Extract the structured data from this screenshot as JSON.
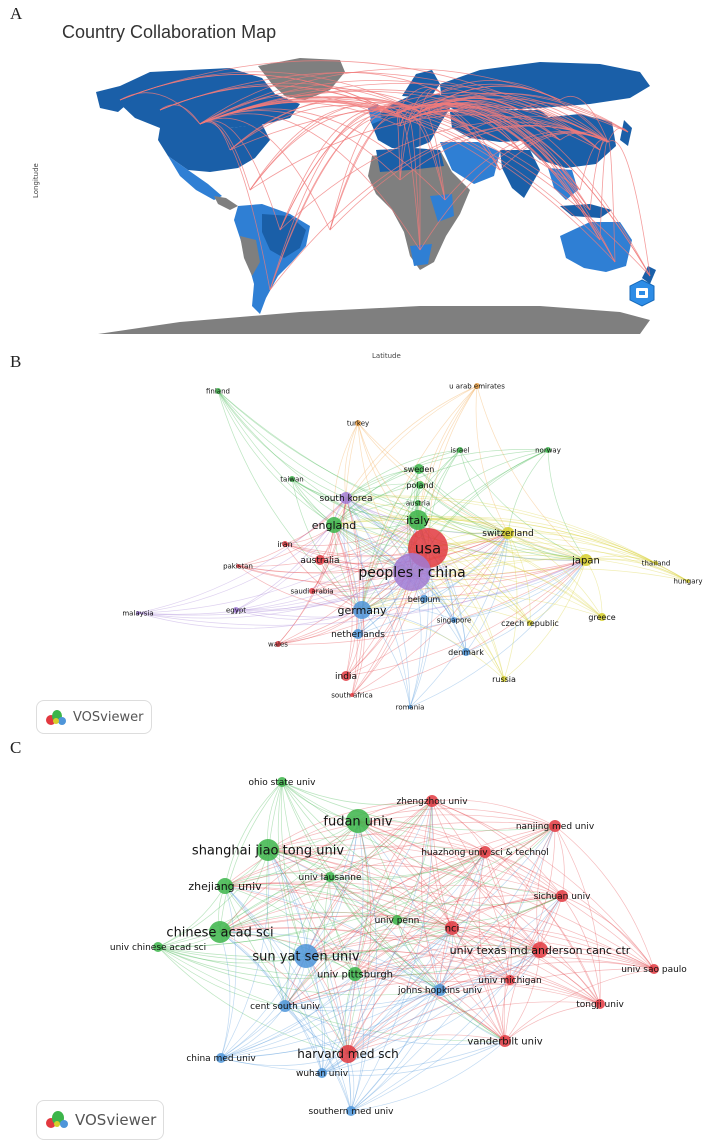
{
  "panels": {
    "a": "A",
    "b": "B",
    "c": "C"
  },
  "map": {
    "title": "Country Collaboration Map",
    "y_label": "Longitude",
    "x_label": "Latitude",
    "colors": {
      "dark": "#1a5fa8",
      "medium": "#2f7fd4",
      "light": "#58a6ee",
      "none": "#7f7f7f",
      "link": "#f07b7b"
    }
  },
  "vos_label": "VOSviewer",
  "country_network": {
    "cluster_colors": {
      "red": "#e2383f",
      "green": "#3cb54a",
      "blue": "#4e95d9",
      "yellow": "#d6cf2a",
      "purple": "#a07ad4",
      "orange": "#f0a040"
    },
    "nodes": [
      {
        "label": "usa",
        "cluster": "red",
        "size": 20,
        "fs": 15
      },
      {
        "label": "peoples r china",
        "cluster": "purple",
        "size": 19,
        "fs": 14
      },
      {
        "label": "italy",
        "cluster": "green",
        "size": 10,
        "fs": 11
      },
      {
        "label": "germany",
        "cluster": "blue",
        "size": 9,
        "fs": 11
      },
      {
        "label": "england",
        "cluster": "green",
        "size": 8,
        "fs": 11
      },
      {
        "label": "japan",
        "cluster": "yellow",
        "size": 6,
        "fs": 10
      },
      {
        "label": "switzerland",
        "cluster": "yellow",
        "size": 6,
        "fs": 9
      },
      {
        "label": "south korea",
        "cluster": "purple",
        "size": 6,
        "fs": 9
      },
      {
        "label": "sweden",
        "cluster": "green",
        "size": 5,
        "fs": 8
      },
      {
        "label": "poland",
        "cluster": "green",
        "size": 4,
        "fs": 8
      },
      {
        "label": "austria",
        "cluster": "green",
        "size": 3,
        "fs": 7
      },
      {
        "label": "israel",
        "cluster": "green",
        "size": 3,
        "fs": 7
      },
      {
        "label": "norway",
        "cluster": "green",
        "size": 3,
        "fs": 7
      },
      {
        "label": "finland",
        "cluster": "green",
        "size": 3,
        "fs": 7
      },
      {
        "label": "taiwan",
        "cluster": "green",
        "size": 3,
        "fs": 7
      },
      {
        "label": "turkey",
        "cluster": "orange",
        "size": 3,
        "fs": 7
      },
      {
        "label": "u arab emirates",
        "cluster": "orange",
        "size": 3,
        "fs": 7
      },
      {
        "label": "iran",
        "cluster": "red",
        "size": 3,
        "fs": 8
      },
      {
        "label": "australia",
        "cluster": "red",
        "size": 5,
        "fs": 9
      },
      {
        "label": "pakistan",
        "cluster": "red",
        "size": 2,
        "fs": 7
      },
      {
        "label": "saudi arabia",
        "cluster": "red",
        "size": 3,
        "fs": 7
      },
      {
        "label": "wales",
        "cluster": "red",
        "size": 3,
        "fs": 7
      },
      {
        "label": "india",
        "cluster": "red",
        "size": 5,
        "fs": 9
      },
      {
        "label": "south africa",
        "cluster": "red",
        "size": 2,
        "fs": 7
      },
      {
        "label": "malaysia",
        "cluster": "purple",
        "size": 2,
        "fs": 7
      },
      {
        "label": "egypt",
        "cluster": "purple",
        "size": 3,
        "fs": 7
      },
      {
        "label": "netherlands",
        "cluster": "blue",
        "size": 5,
        "fs": 9
      },
      {
        "label": "belgium",
        "cluster": "blue",
        "size": 4,
        "fs": 8
      },
      {
        "label": "singapore",
        "cluster": "blue",
        "size": 3,
        "fs": 7
      },
      {
        "label": "denmark",
        "cluster": "blue",
        "size": 4,
        "fs": 8
      },
      {
        "label": "romania",
        "cluster": "blue",
        "size": 2,
        "fs": 7
      },
      {
        "label": "czech republic",
        "cluster": "yellow",
        "size": 3,
        "fs": 8
      },
      {
        "label": "greece",
        "cluster": "yellow",
        "size": 4,
        "fs": 8
      },
      {
        "label": "russia",
        "cluster": "yellow",
        "size": 3,
        "fs": 8
      },
      {
        "label": "thailand",
        "cluster": "yellow",
        "size": 2,
        "fs": 7
      },
      {
        "label": "hungary",
        "cluster": "yellow",
        "size": 2,
        "fs": 7
      }
    ]
  },
  "institution_network": {
    "cluster_colors": {
      "red": "#e2383f",
      "green": "#3cb54a",
      "blue": "#4e95d9"
    },
    "nodes": [
      {
        "label": "fudan univ",
        "cluster": "green",
        "size": 12,
        "fs": 13
      },
      {
        "label": "shanghai jiao tong univ",
        "cluster": "green",
        "size": 11,
        "fs": 13
      },
      {
        "label": "chinese acad sci",
        "cluster": "green",
        "size": 11,
        "fs": 13
      },
      {
        "label": "sun yat sen univ",
        "cluster": "blue",
        "size": 12,
        "fs": 13
      },
      {
        "label": "harvard med sch",
        "cluster": "red",
        "size": 9,
        "fs": 12
      },
      {
        "label": "zhejiang univ",
        "cluster": "green",
        "size": 8,
        "fs": 11
      },
      {
        "label": "univ pittsburgh",
        "cluster": "green",
        "size": 7,
        "fs": 10
      },
      {
        "label": "nci",
        "cluster": "red",
        "size": 7,
        "fs": 10
      },
      {
        "label": "univ texas md anderson canc ctr",
        "cluster": "red",
        "size": 8,
        "fs": 11
      },
      {
        "label": "vanderbilt univ",
        "cluster": "red",
        "size": 6,
        "fs": 10
      },
      {
        "label": "johns hopkins univ",
        "cluster": "blue",
        "size": 6,
        "fs": 9
      },
      {
        "label": "cent south univ",
        "cluster": "blue",
        "size": 6,
        "fs": 9
      },
      {
        "label": "zhengzhou univ",
        "cluster": "red",
        "size": 6,
        "fs": 9
      },
      {
        "label": "nanjing med univ",
        "cluster": "red",
        "size": 6,
        "fs": 9
      },
      {
        "label": "huazhong univ sci & technol",
        "cluster": "red",
        "size": 6,
        "fs": 9
      },
      {
        "label": "sichuan univ",
        "cluster": "red",
        "size": 6,
        "fs": 9
      },
      {
        "label": "univ michigan",
        "cluster": "red",
        "size": 5,
        "fs": 9
      },
      {
        "label": "tongji univ",
        "cluster": "red",
        "size": 5,
        "fs": 9
      },
      {
        "label": "univ sao paulo",
        "cluster": "red",
        "size": 5,
        "fs": 9
      },
      {
        "label": "univ penn",
        "cluster": "green",
        "size": 5,
        "fs": 9
      },
      {
        "label": "univ lausanne",
        "cluster": "green",
        "size": 5,
        "fs": 9
      },
      {
        "label": "ohio state univ",
        "cluster": "green",
        "size": 5,
        "fs": 9
      },
      {
        "label": "univ chinese acad sci",
        "cluster": "green",
        "size": 5,
        "fs": 9
      },
      {
        "label": "china med univ",
        "cluster": "blue",
        "size": 5,
        "fs": 9
      },
      {
        "label": "wuhan univ",
        "cluster": "blue",
        "size": 5,
        "fs": 9
      },
      {
        "label": "southern med univ",
        "cluster": "blue",
        "size": 5,
        "fs": 9
      }
    ]
  }
}
